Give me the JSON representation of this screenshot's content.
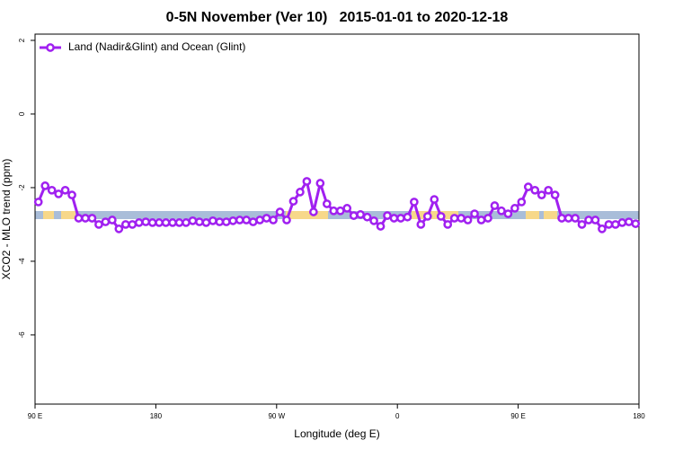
{
  "chart_data": {
    "type": "line",
    "title": "0-5N November (Ver 10)   2015-01-01 to 2020-12-18",
    "xlabel": "Longitude (deg E)",
    "ylabel": "XCO2 - MLO trend (ppm)",
    "xlim": [
      90,
      540
    ],
    "ylim": [
      -7.88,
      2.17
    ],
    "xticks": [
      {
        "value": 90,
        "label": "90 E"
      },
      180,
      {
        "value": 270,
        "label": "90 W"
      },
      {
        "value": 360,
        "label": "0"
      },
      {
        "value": 450,
        "label": "90 E"
      },
      {
        "value": 540,
        "label": "180"
      }
    ],
    "yticks": [
      2,
      0,
      -2,
      -4,
      -6
    ],
    "legend": "top-left",
    "x": [
      92.5,
      97.5,
      102.5,
      107.5,
      112.5,
      117.5,
      122.5,
      127.5,
      132.5,
      137.5,
      142.5,
      147.5,
      152.5,
      157.5,
      162.5,
      167.5,
      172.5,
      177.5,
      182.5,
      187.5,
      192.5,
      197.5,
      202.5,
      207.5,
      212.5,
      217.5,
      222.5,
      227.5,
      232.5,
      237.5,
      242.5,
      247.5,
      252.5,
      257.5,
      262.5,
      267.5,
      272.5,
      277.5,
      282.5,
      287.5,
      292.5,
      297.5,
      302.5,
      307.5,
      312.5,
      317.5,
      322.5,
      327.5,
      332.5,
      337.5,
      342.5,
      347.5,
      352.5,
      357.5,
      362.5,
      367.5,
      372.5,
      377.5,
      382.5,
      387.5,
      392.5,
      397.5,
      402.5,
      407.5,
      412.5,
      417.5,
      422.5,
      427.5,
      432.5,
      437.5,
      442.5,
      447.5,
      452.5,
      457.5,
      462.5,
      467.5,
      472.5,
      477.5,
      482.5,
      487.5,
      492.5,
      497.5,
      502.5,
      507.5,
      512.5,
      517.5,
      522.5,
      527.5,
      532.5,
      537.5
    ],
    "series": [
      {
        "name": "Land (Nadir&Glint) and Ocean (Glint)",
        "color": "#a020f0",
        "values": [
          -2.39,
          -1.95,
          -2.07,
          -2.17,
          -2.07,
          -2.2,
          -2.83,
          -2.83,
          -2.83,
          -3.0,
          -2.93,
          -2.88,
          -3.12,
          -3.0,
          -3.0,
          -2.95,
          -2.93,
          -2.95,
          -2.95,
          -2.95,
          -2.95,
          -2.95,
          -2.95,
          -2.9,
          -2.93,
          -2.95,
          -2.9,
          -2.93,
          -2.93,
          -2.9,
          -2.88,
          -2.88,
          -2.93,
          -2.88,
          -2.83,
          -2.88,
          -2.66,
          -2.88,
          -2.37,
          -2.12,
          -1.83,
          -2.66,
          -1.88,
          -2.44,
          -2.63,
          -2.63,
          -2.56,
          -2.76,
          -2.73,
          -2.8,
          -2.9,
          -3.05,
          -2.76,
          -2.83,
          -2.83,
          -2.8,
          -2.39,
          -3.0,
          -2.78,
          -2.32,
          -2.78,
          -3.0,
          -2.83,
          -2.83,
          -2.88,
          -2.71,
          -2.88,
          -2.83,
          -2.49,
          -2.63,
          -2.71,
          -2.56,
          -2.39,
          -1.98,
          -2.07,
          -2.2,
          -2.07,
          -2.2,
          -2.83,
          -2.83,
          -2.83,
          -3.0,
          -2.88,
          -2.88,
          -3.12,
          -3.0,
          -3.0,
          -2.95,
          -2.93,
          -2.98
        ]
      }
    ]
  }
}
